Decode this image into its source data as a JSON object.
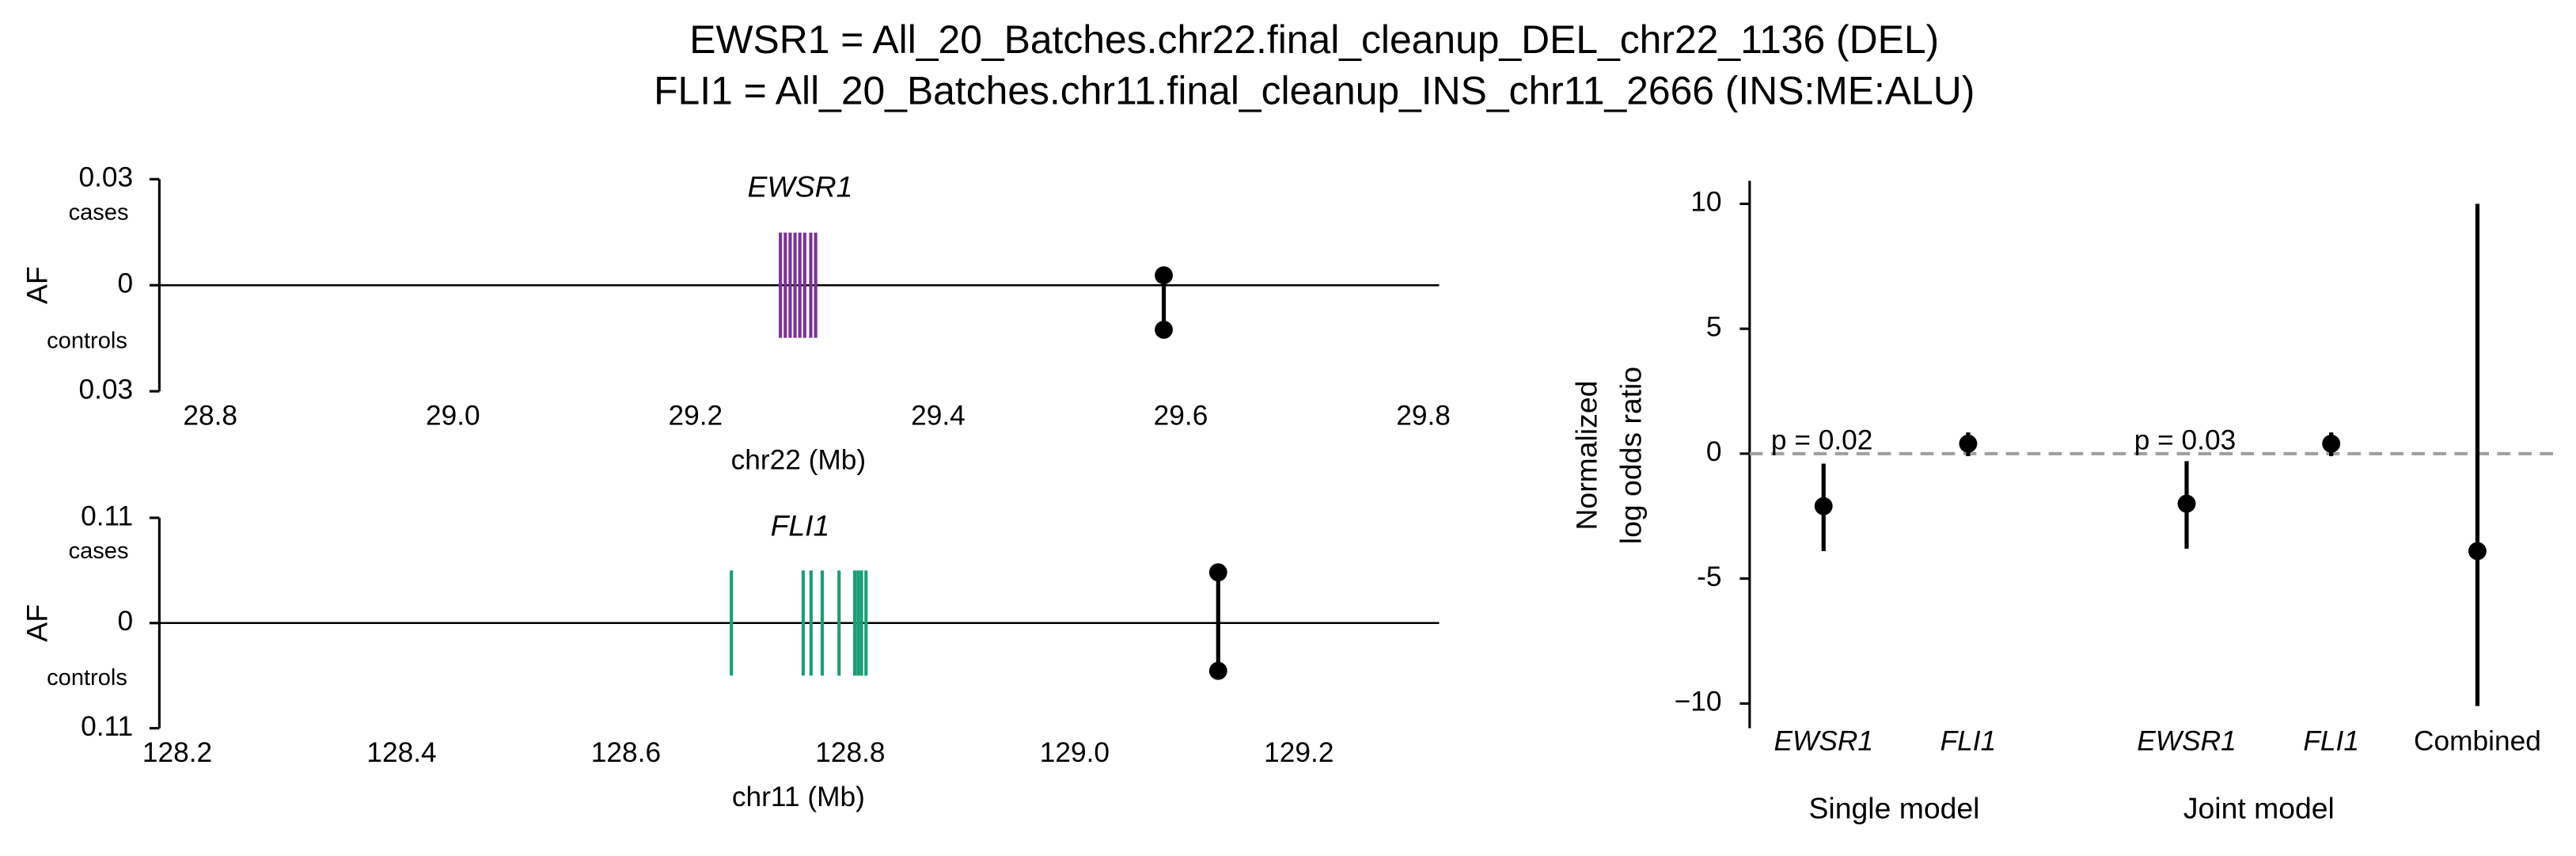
{
  "title_lines": [
    "EWSR1 = All_20_Batches.chr22.final_cleanup_DEL_chr22_1136 (DEL)",
    "FLI1 = All_20_Batches.chr11.final_cleanup_INS_chr11_2666 (INS:ME:ALU)"
  ],
  "chart_data": [
    {
      "type": "locus",
      "title": "EWSR1",
      "xlabel": "chr22 (Mb)",
      "ylabel": "AF",
      "upper_label": "cases",
      "lower_label": "controls",
      "xlim": [
        28.758,
        29.813
      ],
      "xticks": [
        {
          "value": 28.8,
          "label": "28.8"
        },
        {
          "value": 29.0,
          "label": "29.0"
        },
        {
          "value": 29.2,
          "label": "29.2"
        },
        {
          "value": 29.4,
          "label": "29.4"
        },
        {
          "value": 29.6,
          "label": "29.6"
        },
        {
          "value": 29.8,
          "label": "29.8"
        }
      ],
      "ylim": [
        -0.03,
        0.03
      ],
      "yticks": [
        0.03,
        0,
        {
          "value": -0.03,
          "label": "0.03"
        }
      ],
      "exon_color": "#7b3294",
      "exons": [
        29.27,
        29.274,
        29.278,
        29.282,
        29.286,
        29.29,
        29.295,
        29.299
      ],
      "variant": {
        "x": 29.586,
        "cases": 0.0028,
        "controls": 0.0126
      }
    },
    {
      "type": "locus",
      "title": "FLI1",
      "xlabel": "chr11 (Mb)",
      "ylabel": "AF",
      "upper_label": "cases",
      "lower_label": "controls",
      "xlim": [
        128.184,
        129.325
      ],
      "xticks": [
        128.2,
        128.4,
        128.6,
        128.8,
        {
          "value": 129.0,
          "label": "129.0"
        },
        129.2
      ],
      "ylim": [
        -0.11,
        0.11
      ],
      "yticks": [
        0.11,
        0,
        {
          "value": -0.11,
          "label": "0.11"
        }
      ],
      "exon_color": "#1b9e77",
      "exons": [
        128.694,
        128.758,
        128.765,
        128.775,
        128.79,
        128.804,
        128.807,
        128.81,
        128.814
      ],
      "variant": {
        "x": 129.128,
        "cases": 0.053,
        "controls": 0.05
      }
    },
    {
      "type": "errorbar",
      "ylabel": [
        "Normalized",
        "log odds ratio"
      ],
      "categories": [
        "EWSR1",
        "FLI1",
        "EWSR1",
        "FLI1",
        "Combined"
      ],
      "group_labels": [
        "Single model",
        "Joint model"
      ],
      "values": [
        -2.1,
        0.4,
        -2.0,
        0.4,
        -3.9
      ],
      "lower": [
        -3.9,
        -0.1,
        -3.8,
        -0.1,
        -10.1
      ],
      "upper": [
        -0.4,
        0.85,
        -0.3,
        0.85,
        10.0
      ],
      "p_values": [
        "p = 0.02",
        null,
        "p = 0.03",
        null,
        null
      ],
      "ylim": [
        -10.99,
        10.92
      ],
      "yticks": [
        10,
        5,
        0,
        -5,
        {
          "value": -10,
          "label": "−10"
        }
      ],
      "reference_line": 0,
      "reference_color": "#a0a0a0",
      "color": "#000000"
    }
  ]
}
